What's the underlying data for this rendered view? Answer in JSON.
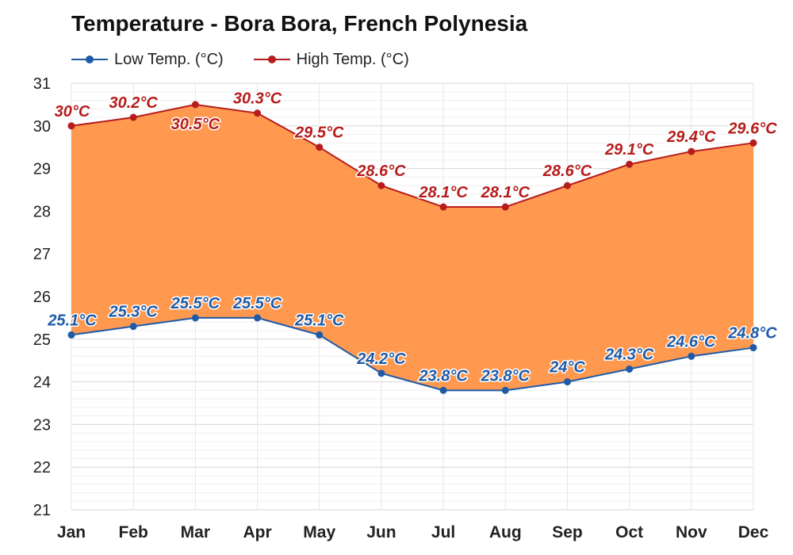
{
  "chart_data": {
    "type": "area",
    "title": "Temperature - Bora Bora, French Polynesia",
    "categories": [
      "Jan",
      "Feb",
      "Mar",
      "Apr",
      "May",
      "Jun",
      "Jul",
      "Aug",
      "Sep",
      "Oct",
      "Nov",
      "Dec"
    ],
    "series": [
      {
        "name": "Low Temp. (°C)",
        "color": "#1f5aa6",
        "values": [
          25.1,
          25.3,
          25.5,
          25.5,
          25.1,
          24.2,
          23.8,
          23.8,
          24.0,
          24.3,
          24.6,
          24.8
        ],
        "labels": [
          "25.1°C",
          "25.3°C",
          "25.5°C",
          "25.5°C",
          "25.1°C",
          "24.2°C",
          "23.8°C",
          "23.8°C",
          "24°C",
          "24.3°C",
          "24.6°C",
          "24.8°C"
        ]
      },
      {
        "name": "High Temp. (°C)",
        "color": "#b71c1c",
        "values": [
          30.0,
          30.2,
          30.5,
          30.3,
          29.5,
          28.6,
          28.1,
          28.1,
          28.6,
          29.1,
          29.4,
          29.6
        ],
        "labels": [
          "30°C",
          "30.2°C",
          "30.5°C",
          "30.3°C",
          "29.5°C",
          "28.6°C",
          "28.1°C",
          "28.1°C",
          "28.6°C",
          "29.1°C",
          "29.4°C",
          "29.6°C"
        ]
      }
    ],
    "fill_color": "#ff9142",
    "ylim": [
      21,
      31
    ],
    "yticks": [
      "21",
      "22",
      "23",
      "24",
      "25",
      "26",
      "27",
      "28",
      "29",
      "30",
      "31"
    ],
    "grid": true,
    "legend_position": "top-left"
  }
}
